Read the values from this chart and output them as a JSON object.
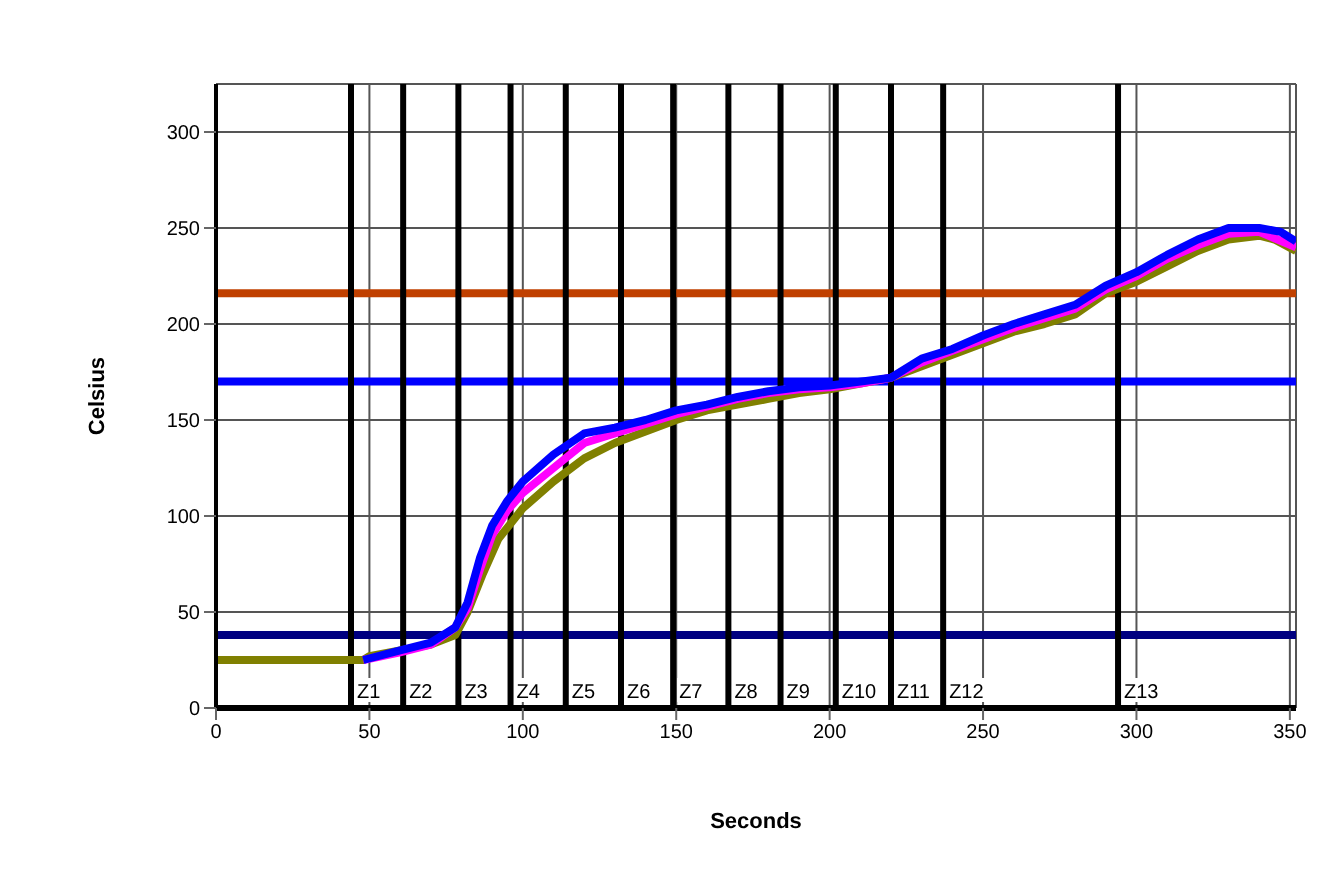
{
  "chart_data": {
    "type": "line",
    "xlabel": "Seconds",
    "ylabel": "Celsius",
    "xlim": [
      0,
      352
    ],
    "xticks": [
      0,
      50,
      100,
      150,
      200,
      250,
      300,
      350
    ],
    "ylim": [
      0,
      325
    ],
    "yticks": [
      0,
      50,
      100,
      150,
      200,
      250,
      300
    ],
    "grid": true,
    "marker": "none",
    "line_style": "solid",
    "series": [
      {
        "color": "#808000",
        "x": [
          0,
          20,
          48,
          50,
          60,
          70,
          78,
          82,
          87,
          92,
          100,
          110,
          120,
          130,
          140,
          150,
          160,
          170,
          180,
          190,
          200,
          210,
          220,
          230,
          240,
          250,
          260,
          270,
          280,
          290,
          300,
          310,
          320,
          330,
          340,
          345,
          352
        ],
        "values": [
          25,
          25,
          25,
          27,
          30,
          33,
          38,
          50,
          70,
          88,
          104,
          118,
          130,
          138,
          144,
          150,
          155,
          158,
          161,
          164,
          166,
          169,
          172,
          178,
          184,
          190,
          196,
          200,
          205,
          216,
          222,
          230,
          238,
          244,
          246,
          244,
          238
        ]
      },
      {
        "color": "#ff00ff",
        "x": [
          48,
          60,
          70,
          78,
          82,
          86,
          90,
          95,
          100,
          110,
          120,
          130,
          140,
          150,
          160,
          170,
          180,
          190,
          200,
          210,
          220,
          230,
          240,
          250,
          260,
          270,
          280,
          290,
          300,
          310,
          320,
          330,
          340,
          352
        ],
        "values": [
          25,
          29,
          33,
          42,
          52,
          72,
          90,
          103,
          112,
          125,
          138,
          143,
          148,
          153,
          157,
          161,
          164,
          166,
          167,
          169,
          172,
          180,
          186,
          192,
          198,
          203,
          208,
          218,
          225,
          234,
          241,
          247,
          248,
          240
        ]
      },
      {
        "color": "#0000ff",
        "x": [
          48,
          60,
          70,
          78,
          82,
          86,
          90,
          95,
          100,
          110,
          120,
          130,
          140,
          150,
          160,
          170,
          180,
          190,
          200,
          210,
          220,
          230,
          240,
          250,
          260,
          270,
          280,
          290,
          300,
          310,
          320,
          330,
          340,
          347,
          352
        ],
        "values": [
          25,
          30,
          34,
          42,
          55,
          78,
          95,
          108,
          118,
          132,
          143,
          146,
          150,
          155,
          158,
          162,
          165,
          167,
          168,
          170,
          172,
          182,
          187,
          194,
          200,
          205,
          210,
          220,
          227,
          236,
          244,
          250,
          250,
          248,
          243
        ]
      }
    ],
    "ref_lines": [
      {
        "axis": "y",
        "value": 216,
        "color": "#c04000"
      },
      {
        "axis": "y",
        "value": 170,
        "color": "#0000ff"
      },
      {
        "axis": "y",
        "value": 38,
        "color": "#000080"
      },
      {
        "axis": "x",
        "value": 44,
        "label": "Z1",
        "color": "#000000"
      },
      {
        "axis": "x",
        "value": 61,
        "label": "Z2",
        "color": "#000000"
      },
      {
        "axis": "x",
        "value": 79,
        "label": "Z3",
        "color": "#000000"
      },
      {
        "axis": "x",
        "value": 96,
        "label": "Z4",
        "color": "#000000"
      },
      {
        "axis": "x",
        "value": 114,
        "label": "Z5",
        "color": "#000000"
      },
      {
        "axis": "x",
        "value": 132,
        "label": "Z6",
        "color": "#000000"
      },
      {
        "axis": "x",
        "value": 149,
        "label": "Z7",
        "color": "#000000"
      },
      {
        "axis": "x",
        "value": 167,
        "label": "Z8",
        "color": "#000000"
      },
      {
        "axis": "x",
        "value": 184,
        "label": "Z9",
        "color": "#000000"
      },
      {
        "axis": "x",
        "value": 202,
        "label": "Z10",
        "color": "#000000"
      },
      {
        "axis": "x",
        "value": 220,
        "label": "Z11",
        "color": "#000000"
      },
      {
        "axis": "x",
        "value": 237,
        "label": "Z12",
        "color": "#000000"
      },
      {
        "axis": "x",
        "value": 294,
        "label": "Z13",
        "color": "#000000"
      }
    ]
  }
}
